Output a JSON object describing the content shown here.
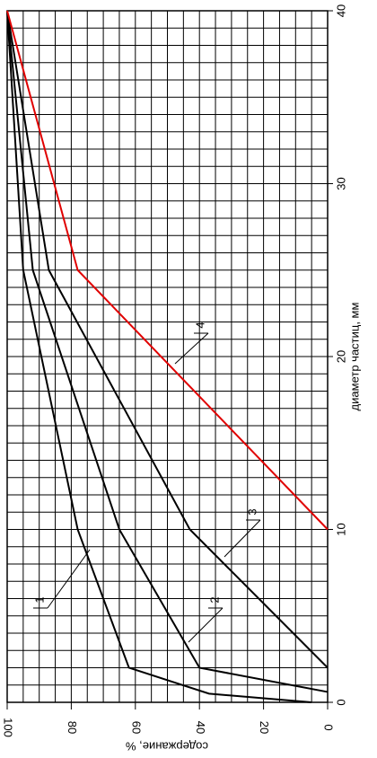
{
  "chart_data": {
    "type": "line",
    "xlabel": "диаметр частиц, мм",
    "ylabel": "содержание, %",
    "xlim": [
      0,
      40
    ],
    "xticks": [
      0,
      10,
      20,
      30,
      40
    ],
    "ylim": [
      0,
      100
    ],
    "yticks": [
      0,
      20,
      40,
      60,
      80,
      100
    ],
    "grid": true,
    "series": [
      {
        "name": "1",
        "color": "#000000",
        "x": [
          0,
          0.5,
          2,
          10,
          25,
          40
        ],
        "values": [
          5,
          37,
          62,
          78,
          95,
          100
        ]
      },
      {
        "name": "2",
        "color": "#000000",
        "x": [
          0.6,
          2,
          10,
          25,
          40
        ],
        "values": [
          0,
          40,
          65,
          92,
          100
        ]
      },
      {
        "name": "3",
        "color": "#000000",
        "x": [
          2,
          10,
          25,
          40
        ],
        "values": [
          0,
          43,
          87,
          100
        ]
      },
      {
        "name": "4",
        "color": "#e00000",
        "x": [
          10,
          25,
          40
        ],
        "values": [
          0,
          78,
          100
        ]
      }
    ]
  }
}
